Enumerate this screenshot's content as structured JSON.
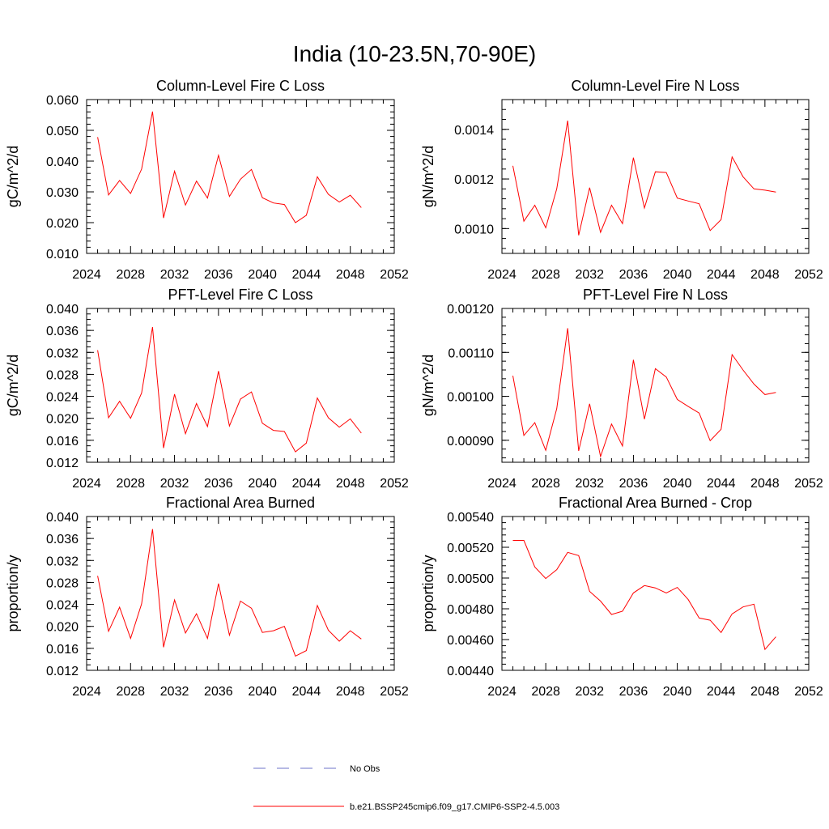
{
  "figure": {
    "title": "India (10-23.5N,70-90E)",
    "series_color": "#ff0000",
    "obs_color": "#6d73c9"
  },
  "chart_data": [
    {
      "type": "line",
      "title": "Column-Level Fire C Loss",
      "xlabel": "",
      "ylabel": "gC/m^2/d",
      "xlim": [
        2024,
        2052
      ],
      "ylim": [
        0.01,
        0.06
      ],
      "x_major_ticks": [
        2024,
        2028,
        2032,
        2036,
        2040,
        2044,
        2048,
        2052
      ],
      "x_tick_labels": [
        "2024",
        "2028",
        "2032",
        "2036",
        "2040",
        "2044",
        "2048",
        "2052"
      ],
      "y_major_ticks": [
        0.01,
        0.02,
        0.03,
        0.04,
        0.05,
        0.06
      ],
      "y_tick_labels": [
        "0.010",
        "0.020",
        "0.030",
        "0.040",
        "0.050",
        "0.060"
      ],
      "y_minor_step": 0.002,
      "x": [
        2025,
        2026,
        2027,
        2028,
        2029,
        2030,
        2031,
        2032,
        2033,
        2034,
        2035,
        2036,
        2037,
        2038,
        2039,
        2040,
        2041,
        2042,
        2043,
        2044,
        2045,
        2046,
        2047,
        2048,
        2049
      ],
      "series": [
        {
          "name": "b.e21.BSSP245cmip6.f09_g17.CMIP6-SSP2-4.5.003",
          "values": [
            0.0478,
            0.029,
            0.0337,
            0.0295,
            0.0374,
            0.0561,
            0.0215,
            0.0367,
            0.0257,
            0.0335,
            0.028,
            0.0419,
            0.0285,
            0.0341,
            0.0373,
            0.0281,
            0.0264,
            0.0259,
            0.02,
            0.0224,
            0.0349,
            0.0292,
            0.0267,
            0.0289,
            0.0249
          ]
        }
      ]
    },
    {
      "type": "line",
      "title": "Column-Level Fire N Loss",
      "xlabel": "",
      "ylabel": "gN/m^2/d",
      "xlim": [
        2024,
        2052
      ],
      "ylim": [
        0.0009,
        0.00152
      ],
      "x_major_ticks": [
        2024,
        2028,
        2032,
        2036,
        2040,
        2044,
        2048,
        2052
      ],
      "x_tick_labels": [
        "2024",
        "2028",
        "2032",
        "2036",
        "2040",
        "2044",
        "2048",
        "2052"
      ],
      "y_major_ticks": [
        0.001,
        0.0012,
        0.0014
      ],
      "y_tick_labels": [
        "0.0010",
        "0.0012",
        "0.0014"
      ],
      "y_minor_step": 4e-05,
      "x": [
        2025,
        2026,
        2027,
        2028,
        2029,
        2030,
        2031,
        2032,
        2033,
        2034,
        2035,
        2036,
        2037,
        2038,
        2039,
        2040,
        2041,
        2042,
        2043,
        2044,
        2045,
        2046,
        2047,
        2048,
        2049
      ],
      "series": [
        {
          "name": "b.e21.BSSP245cmip6.f09_g17.CMIP6-SSP2-4.5.003",
          "values": [
            0.001253,
            0.00103,
            0.001094,
            0.001003,
            0.00116,
            0.001435,
            0.000973,
            0.001165,
            0.000985,
            0.001094,
            0.00102,
            0.001286,
            0.001083,
            0.001229,
            0.001226,
            0.001123,
            0.001111,
            0.0011,
            0.000992,
            0.001036,
            0.001289,
            0.001209,
            0.00116,
            0.001155,
            0.001147
          ]
        }
      ]
    },
    {
      "type": "line",
      "title": "PFT-Level Fire C Loss",
      "xlabel": "",
      "ylabel": "gC/m^2/d",
      "xlim": [
        2024,
        2052
      ],
      "ylim": [
        0.012,
        0.04
      ],
      "x_major_ticks": [
        2024,
        2028,
        2032,
        2036,
        2040,
        2044,
        2048,
        2052
      ],
      "x_tick_labels": [
        "2024",
        "2028",
        "2032",
        "2036",
        "2040",
        "2044",
        "2048",
        "2052"
      ],
      "y_major_ticks": [
        0.012,
        0.016,
        0.02,
        0.024,
        0.028,
        0.032,
        0.036,
        0.04
      ],
      "y_tick_labels": [
        "0.012",
        "0.016",
        "0.020",
        "0.024",
        "0.028",
        "0.032",
        "0.036",
        "0.040"
      ],
      "y_minor_step": 0.001,
      "x": [
        2025,
        2026,
        2027,
        2028,
        2029,
        2030,
        2031,
        2032,
        2033,
        2034,
        2035,
        2036,
        2037,
        2038,
        2039,
        2040,
        2041,
        2042,
        2043,
        2044,
        2045,
        2046,
        2047,
        2048,
        2049
      ],
      "series": [
        {
          "name": "b.e21.BSSP245cmip6.f09_g17.CMIP6-SSP2-4.5.003",
          "values": [
            0.0324,
            0.0201,
            0.0231,
            0.02,
            0.0246,
            0.0366,
            0.0146,
            0.0244,
            0.0172,
            0.0227,
            0.0185,
            0.0286,
            0.0186,
            0.0235,
            0.0248,
            0.0191,
            0.0178,
            0.0176,
            0.0139,
            0.0155,
            0.0237,
            0.0201,
            0.0184,
            0.0199,
            0.0173
          ]
        }
      ]
    },
    {
      "type": "line",
      "title": "PFT-Level Fire N Loss",
      "xlabel": "",
      "ylabel": "gN/m^2/d",
      "xlim": [
        2024,
        2052
      ],
      "ylim": [
        0.00085,
        0.0012
      ],
      "x_major_ticks": [
        2024,
        2028,
        2032,
        2036,
        2040,
        2044,
        2048,
        2052
      ],
      "x_tick_labels": [
        "2024",
        "2028",
        "2032",
        "2036",
        "2040",
        "2044",
        "2048",
        "2052"
      ],
      "y_major_ticks": [
        0.0009,
        0.001,
        0.0011,
        0.0012
      ],
      "y_tick_labels": [
        "0.00090",
        "0.00100",
        "0.00110",
        "0.00120"
      ],
      "y_minor_step": 2e-05,
      "x": [
        2025,
        2026,
        2027,
        2028,
        2029,
        2030,
        2031,
        2032,
        2033,
        2034,
        2035,
        2036,
        2037,
        2038,
        2039,
        2040,
        2041,
        2042,
        2043,
        2044,
        2045,
        2046,
        2047,
        2048,
        2049
      ],
      "series": [
        {
          "name": "b.e21.BSSP245cmip6.f09_g17.CMIP6-SSP2-4.5.003",
          "values": [
            0.001047,
            0.000911,
            0.00094,
            0.000877,
            0.000972,
            0.001155,
            0.000876,
            0.000983,
            0.000863,
            0.000937,
            0.000887,
            0.001083,
            0.000948,
            0.001063,
            0.001044,
            0.000993,
            0.000977,
            0.000962,
            0.000899,
            0.000925,
            0.001095,
            0.00106,
            0.001028,
            0.001004,
            0.001009
          ]
        }
      ]
    },
    {
      "type": "line",
      "title": "Fractional Area Burned",
      "xlabel": "",
      "ylabel": "proportion/y",
      "xlim": [
        2024,
        2052
      ],
      "ylim": [
        0.012,
        0.04
      ],
      "x_major_ticks": [
        2024,
        2028,
        2032,
        2036,
        2040,
        2044,
        2048,
        2052
      ],
      "x_tick_labels": [
        "2024",
        "2028",
        "2032",
        "2036",
        "2040",
        "2044",
        "2048",
        "2052"
      ],
      "y_major_ticks": [
        0.012,
        0.016,
        0.02,
        0.024,
        0.028,
        0.032,
        0.036,
        0.04
      ],
      "y_tick_labels": [
        "0.012",
        "0.016",
        "0.020",
        "0.024",
        "0.028",
        "0.032",
        "0.036",
        "0.040"
      ],
      "y_minor_step": 0.001,
      "x": [
        2025,
        2026,
        2027,
        2028,
        2029,
        2030,
        2031,
        2032,
        2033,
        2034,
        2035,
        2036,
        2037,
        2038,
        2039,
        2040,
        2041,
        2042,
        2043,
        2044,
        2045,
        2046,
        2047,
        2048,
        2049
      ],
      "series": [
        {
          "name": "b.e21.BSSP245cmip6.f09_g17.CMIP6-SSP2-4.5.003",
          "values": [
            0.0292,
            0.0191,
            0.0235,
            0.0178,
            0.0241,
            0.0377,
            0.0162,
            0.0248,
            0.0188,
            0.0223,
            0.0178,
            0.0278,
            0.0184,
            0.0246,
            0.0233,
            0.0189,
            0.0192,
            0.02,
            0.0146,
            0.0156,
            0.0238,
            0.0193,
            0.0173,
            0.0192,
            0.0177
          ]
        }
      ]
    },
    {
      "type": "line",
      "title": "Fractional Area Burned - Crop",
      "xlabel": "",
      "ylabel": "proportion/y",
      "xlim": [
        2024,
        2052
      ],
      "ylim": [
        0.0044,
        0.0054
      ],
      "x_major_ticks": [
        2024,
        2028,
        2032,
        2036,
        2040,
        2044,
        2048,
        2052
      ],
      "x_tick_labels": [
        "2024",
        "2028",
        "2032",
        "2036",
        "2040",
        "2044",
        "2048",
        "2052"
      ],
      "y_major_ticks": [
        0.0044,
        0.0046,
        0.0048,
        0.005,
        0.0052,
        0.0054
      ],
      "y_tick_labels": [
        "0.00440",
        "0.00460",
        "0.00480",
        "0.00500",
        "0.00520",
        "0.00540"
      ],
      "y_minor_step": 4e-05,
      "x": [
        2025,
        2026,
        2027,
        2028,
        2029,
        2030,
        2031,
        2032,
        2033,
        2034,
        2035,
        2036,
        2037,
        2038,
        2039,
        2040,
        2041,
        2042,
        2043,
        2044,
        2045,
        2046,
        2047,
        2048,
        2049
      ],
      "series": [
        {
          "name": "b.e21.BSSP245cmip6.f09_g17.CMIP6-SSP2-4.5.003",
          "values": [
            0.005245,
            0.005245,
            0.005072,
            0.004997,
            0.005054,
            0.005167,
            0.005146,
            0.004913,
            0.00485,
            0.004763,
            0.004784,
            0.004903,
            0.004951,
            0.004936,
            0.004903,
            0.004939,
            0.00486,
            0.00474,
            0.004726,
            0.004646,
            0.004767,
            0.004812,
            0.00483,
            0.004536,
            0.004618
          ]
        }
      ]
    }
  ],
  "legend": {
    "entries": [
      {
        "label": "No Obs",
        "style": "dashed"
      },
      {
        "label": "b.e21.BSSP245cmip6.f09_g17.CMIP6-SSP2-4.5.003",
        "style": "solid"
      }
    ]
  }
}
